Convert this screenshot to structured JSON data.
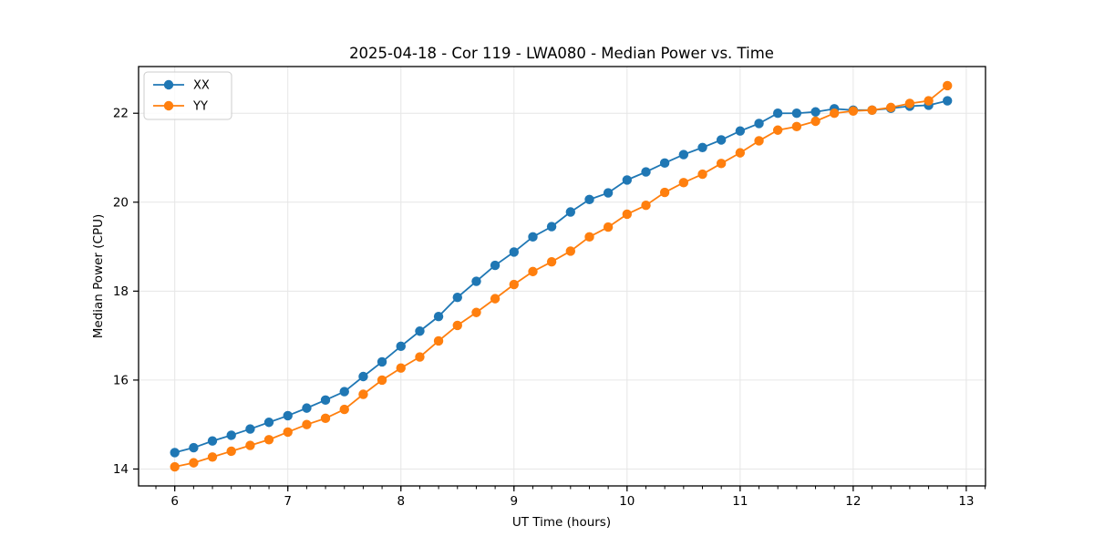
{
  "chart_data": {
    "type": "line",
    "title": "2025-04-18 - Cor 119 - LWA080 - Median Power vs. Time",
    "xlabel": "UT Time (hours)",
    "ylabel": "Median Power (CPU)",
    "xlim": [
      5.68,
      13.17
    ],
    "ylim": [
      13.62,
      23.05
    ],
    "x_major_ticks": [
      6,
      7,
      8,
      9,
      10,
      11,
      12,
      13
    ],
    "x_minor_interval": 0.166667,
    "y_major_ticks": [
      14,
      16,
      18,
      20,
      22
    ],
    "grid": true,
    "grid_color": "#e6e6e6",
    "legend_position": "upper-left",
    "x": [
      6.0,
      6.167,
      6.333,
      6.5,
      6.667,
      6.833,
      7.0,
      7.167,
      7.333,
      7.5,
      7.667,
      7.833,
      8.0,
      8.167,
      8.333,
      8.5,
      8.667,
      8.833,
      9.0,
      9.167,
      9.333,
      9.5,
      9.667,
      9.833,
      10.0,
      10.167,
      10.333,
      10.5,
      10.667,
      10.833,
      11.0,
      11.167,
      11.333,
      11.5,
      11.667,
      11.833,
      12.0,
      12.167,
      12.333,
      12.5,
      12.667,
      12.833
    ],
    "series": [
      {
        "name": "XX",
        "color": "#1f77b4",
        "values": [
          14.37,
          14.48,
          14.63,
          14.76,
          14.9,
          15.05,
          15.2,
          15.37,
          15.55,
          15.74,
          16.08,
          16.41,
          16.76,
          17.1,
          17.43,
          17.86,
          18.22,
          18.58,
          18.88,
          19.22,
          19.45,
          19.78,
          20.06,
          20.21,
          20.5,
          20.68,
          20.88,
          21.07,
          21.23,
          21.4,
          21.6,
          21.77,
          22.0,
          22.0,
          22.03,
          22.1,
          22.07,
          22.07,
          22.11,
          22.16,
          22.18,
          22.28
        ]
      },
      {
        "name": "YY",
        "color": "#ff7f0e",
        "values": [
          14.05,
          14.14,
          14.27,
          14.4,
          14.53,
          14.66,
          14.83,
          15.0,
          15.14,
          15.34,
          15.68,
          16.0,
          16.27,
          16.52,
          16.88,
          17.23,
          17.52,
          17.83,
          18.15,
          18.44,
          18.66,
          18.9,
          19.22,
          19.44,
          19.73,
          19.93,
          20.22,
          20.44,
          20.63,
          20.87,
          21.11,
          21.38,
          21.62,
          21.7,
          21.82,
          22.0,
          22.05,
          22.07,
          22.13,
          22.22,
          22.28,
          22.62
        ]
      }
    ]
  }
}
